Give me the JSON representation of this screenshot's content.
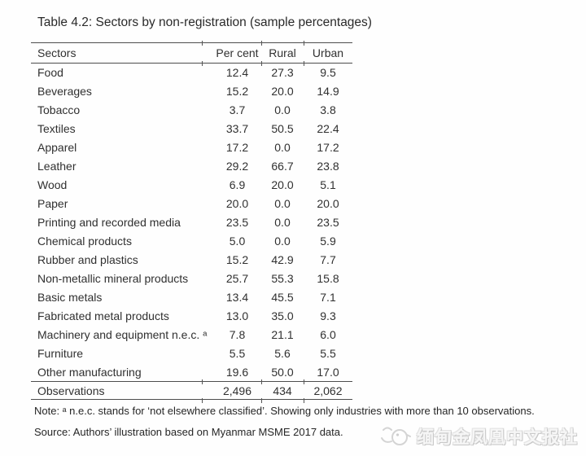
{
  "title": "Table 4.2: Sectors by non-registration (sample percentages)",
  "table": {
    "columns": [
      "Sectors",
      "Per cent",
      "Rural",
      "Urban"
    ],
    "rows": [
      {
        "sector": "Food",
        "percent": "12.4",
        "rural": "27.3",
        "urban": "9.5"
      },
      {
        "sector": "Beverages",
        "percent": "15.2",
        "rural": "20.0",
        "urban": "14.9"
      },
      {
        "sector": "Tobacco",
        "percent": "3.7",
        "rural": "0.0",
        "urban": "3.8"
      },
      {
        "sector": "Textiles",
        "percent": "33.7",
        "rural": "50.5",
        "urban": "22.4"
      },
      {
        "sector": "Apparel",
        "percent": "17.2",
        "rural": "0.0",
        "urban": "17.2"
      },
      {
        "sector": "Leather",
        "percent": "29.2",
        "rural": "66.7",
        "urban": "23.8"
      },
      {
        "sector": "Wood",
        "percent": "6.9",
        "rural": "20.0",
        "urban": "5.1"
      },
      {
        "sector": "Paper",
        "percent": "20.0",
        "rural": "0.0",
        "urban": "20.0"
      },
      {
        "sector": "Printing and recorded media",
        "percent": "23.5",
        "rural": "0.0",
        "urban": "23.5"
      },
      {
        "sector": "Chemical products",
        "percent": "5.0",
        "rural": "0.0",
        "urban": "5.9"
      },
      {
        "sector": "Rubber and plastics",
        "percent": "15.2",
        "rural": "42.9",
        "urban": "7.7"
      },
      {
        "sector": "Non-metallic mineral products",
        "percent": "25.7",
        "rural": "55.3",
        "urban": "15.8"
      },
      {
        "sector": "Basic metals",
        "percent": "13.4",
        "rural": "45.5",
        "urban": "7.1"
      },
      {
        "sector": "Fabricated metal products",
        "percent": "13.0",
        "rural": "35.0",
        "urban": "9.3"
      },
      {
        "sector": "Machinery and equipment n.e.c. ᵃ",
        "percent": "7.8",
        "rural": "21.1",
        "urban": "6.0"
      },
      {
        "sector": "Furniture",
        "percent": "5.5",
        "rural": "5.6",
        "urban": "5.5"
      },
      {
        "sector": "Other manufacturing",
        "percent": "19.6",
        "rural": "50.0",
        "urban": "17.0"
      }
    ],
    "observations": {
      "label": "Observations",
      "percent": "2,496",
      "rural": "434",
      "urban": "2,062"
    }
  },
  "note": "Note: ᵃ n.e.c. stands for ‘not elsewhere classified’. Showing only industries with more than 10 observations.",
  "source": "Source: Authors’ illustration based on Myanmar MSME 2017 data.",
  "watermark": {
    "icon": "phoenix-logo-icon",
    "text": "缅甸金凤凰中文报社"
  },
  "colors": {
    "rule": "#4d4d4d",
    "text": "#303030",
    "watermark": "#d9d9d9",
    "background": "#fefefe"
  },
  "chart_data": {
    "type": "table",
    "title": "Table 4.2: Sectors by non-registration (sample percentages)",
    "columns": [
      "Sectors",
      "Per cent",
      "Rural",
      "Urban"
    ],
    "rows": [
      [
        "Food",
        12.4,
        27.3,
        9.5
      ],
      [
        "Beverages",
        15.2,
        20.0,
        14.9
      ],
      [
        "Tobacco",
        3.7,
        0.0,
        3.8
      ],
      [
        "Textiles",
        33.7,
        50.5,
        22.4
      ],
      [
        "Apparel",
        17.2,
        0.0,
        17.2
      ],
      [
        "Leather",
        29.2,
        66.7,
        23.8
      ],
      [
        "Wood",
        6.9,
        20.0,
        5.1
      ],
      [
        "Paper",
        20.0,
        0.0,
        20.0
      ],
      [
        "Printing and recorded media",
        23.5,
        0.0,
        23.5
      ],
      [
        "Chemical products",
        5.0,
        0.0,
        5.9
      ],
      [
        "Rubber and plastics",
        15.2,
        42.9,
        7.7
      ],
      [
        "Non-metallic mineral products",
        25.7,
        55.3,
        15.8
      ],
      [
        "Basic metals",
        13.4,
        45.5,
        7.1
      ],
      [
        "Fabricated metal products",
        13.0,
        35.0,
        9.3
      ],
      [
        "Machinery and equipment n.e.c.",
        7.8,
        21.1,
        6.0
      ],
      [
        "Furniture",
        5.5,
        5.6,
        5.5
      ],
      [
        "Other manufacturing",
        19.6,
        50.0,
        17.0
      ],
      [
        "Observations",
        2496,
        434,
        2062
      ]
    ]
  }
}
